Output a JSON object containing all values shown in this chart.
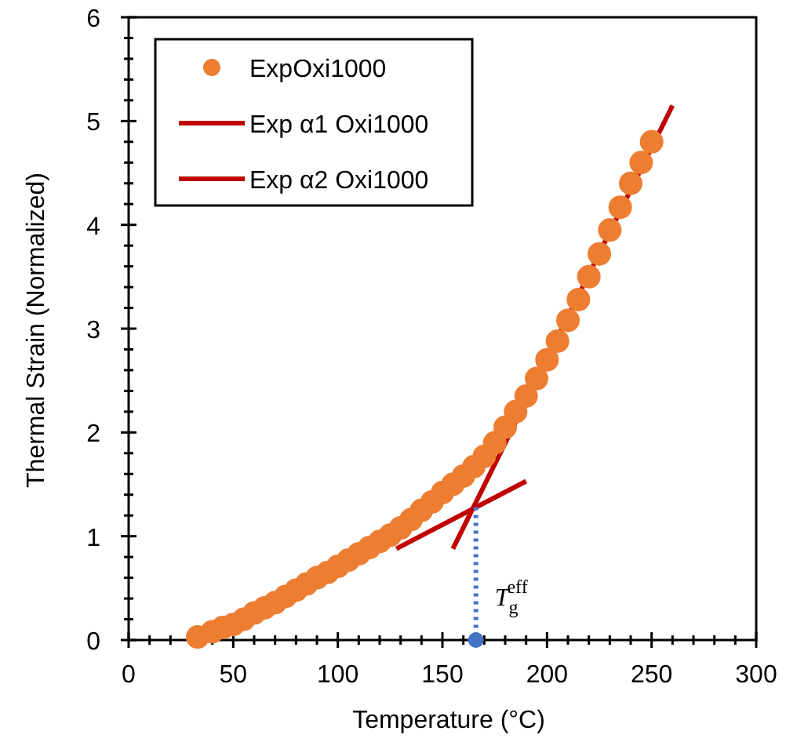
{
  "chart_data": {
    "type": "scatter",
    "xlabel": "Temperature (°C)",
    "ylabel": "Thermal Strain (Normalized)",
    "xlim": [
      0,
      300
    ],
    "ylim": [
      0,
      6
    ],
    "xticks": [
      0,
      {
        "value": 10,
        "label": null
      },
      {
        "value": 20,
        "label": null
      },
      {
        "value": 30,
        "label": null
      },
      {
        "value": 40,
        "label": null
      },
      50,
      {
        "value": 60,
        "label": null
      },
      {
        "value": 70,
        "label": null
      },
      {
        "value": 80,
        "label": null
      },
      {
        "value": 90,
        "label": null
      },
      100,
      {
        "value": 110,
        "label": null
      },
      {
        "value": 120,
        "label": null
      },
      {
        "value": 130,
        "label": null
      },
      {
        "value": 140,
        "label": null
      },
      150,
      {
        "value": 160,
        "label": null
      },
      {
        "value": 170,
        "label": null
      },
      {
        "value": 180,
        "label": null
      },
      {
        "value": 190,
        "label": null
      },
      200,
      {
        "value": 210,
        "label": null
      },
      {
        "value": 220,
        "label": null
      },
      {
        "value": 230,
        "label": null
      },
      {
        "value": 240,
        "label": null
      },
      250,
      {
        "value": 260,
        "label": null
      },
      {
        "value": 270,
        "label": null
      },
      {
        "value": 280,
        "label": null
      },
      {
        "value": 290,
        "label": null
      },
      300
    ],
    "yticks": [
      0,
      {
        "value": 0.2,
        "label": null
      },
      {
        "value": 0.4,
        "label": null
      },
      {
        "value": 0.6,
        "label": null
      },
      {
        "value": 0.8,
        "label": null
      },
      1,
      {
        "value": 1.2,
        "label": null
      },
      {
        "value": 1.4,
        "label": null
      },
      {
        "value": 1.6,
        "label": null
      },
      {
        "value": 1.8,
        "label": null
      },
      2,
      {
        "value": 2.2,
        "label": null
      },
      {
        "value": 2.4,
        "label": null
      },
      {
        "value": 2.6,
        "label": null
      },
      {
        "value": 2.8,
        "label": null
      },
      3,
      {
        "value": 3.2,
        "label": null
      },
      {
        "value": 3.4,
        "label": null
      },
      {
        "value": 3.6,
        "label": null
      },
      {
        "value": 3.8,
        "label": null
      },
      4,
      {
        "value": 4.2,
        "label": null
      },
      {
        "value": 4.4,
        "label": null
      },
      {
        "value": 4.6,
        "label": null
      },
      {
        "value": 4.8,
        "label": null
      },
      5,
      {
        "value": 5.2,
        "label": null
      },
      {
        "value": 5.4,
        "label": null
      },
      {
        "value": 5.6,
        "label": null
      },
      {
        "value": 5.8,
        "label": null
      },
      6
    ],
    "grid": false,
    "legend": "top left",
    "annotations": [
      {
        "text": "T$_{g}$$^{eff}$",
        "x": 166,
        "y": 0
      }
    ],
    "series": [
      {
        "name": "ExpOxi1000",
        "type": "scatter",
        "color": "#ed7d31",
        "marker": "circle",
        "x": [
          33,
          40,
          45,
          50,
          55,
          60,
          65,
          70,
          75,
          80,
          85,
          90,
          95,
          100,
          105,
          110,
          115,
          120,
          125,
          130,
          135,
          140,
          145,
          150,
          155,
          160,
          165,
          170,
          175,
          180,
          185,
          190,
          195,
          200,
          205,
          210,
          215,
          220,
          225,
          230,
          235,
          240,
          245,
          250
        ],
        "values": [
          0.03,
          0.08,
          0.12,
          0.15,
          0.2,
          0.26,
          0.31,
          0.36,
          0.42,
          0.48,
          0.54,
          0.6,
          0.65,
          0.71,
          0.77,
          0.83,
          0.89,
          0.95,
          1.01,
          1.08,
          1.16,
          1.25,
          1.33,
          1.42,
          1.5,
          1.58,
          1.67,
          1.77,
          1.9,
          2.05,
          2.2,
          2.35,
          2.52,
          2.7,
          2.88,
          3.08,
          3.28,
          3.5,
          3.72,
          3.95,
          4.17,
          4.4,
          4.6,
          4.8
        ]
      },
      {
        "name": "Exp α1 Oxi1000",
        "type": "line",
        "color": "#c00000",
        "marker": "none",
        "line_style": "solid",
        "x": [
          155,
          260
        ],
        "values": [
          0.88,
          5.15
        ]
      },
      {
        "name": "Exp α2 Oxi1000",
        "type": "line",
        "color": "#c00000",
        "marker": "none",
        "line_style": "solid",
        "x": [
          128,
          190
        ],
        "values": [
          0.88,
          1.53
        ]
      },
      {
        "type": "line",
        "color": "#4472c4",
        "marker": "none",
        "line_style": "dotted",
        "x": [
          166,
          166
        ],
        "values": [
          1.28,
          0
        ]
      },
      {
        "type": "scatter",
        "color": "#4472c4",
        "marker": "circle",
        "x": [
          166
        ],
        "values": [
          0
        ]
      }
    ]
  }
}
